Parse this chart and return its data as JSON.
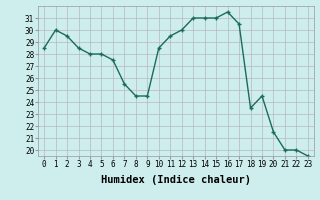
{
  "x": [
    0,
    1,
    2,
    3,
    4,
    5,
    6,
    7,
    8,
    9,
    10,
    11,
    12,
    13,
    14,
    15,
    16,
    17,
    18,
    19,
    20,
    21,
    22,
    23
  ],
  "y": [
    28.5,
    30.0,
    29.5,
    28.5,
    28.0,
    28.0,
    27.5,
    25.5,
    24.5,
    24.5,
    28.5,
    29.5,
    30.0,
    31.0,
    31.0,
    31.0,
    31.5,
    30.5,
    23.5,
    24.5,
    21.5,
    20.0,
    20.0,
    19.5
  ],
  "line_color": "#1a6b5a",
  "marker": "+",
  "marker_size": 3,
  "linewidth": 1.0,
  "xlabel": "Humidex (Indice chaleur)",
  "ylim": [
    19.5,
    32.0
  ],
  "xlim": [
    -0.5,
    23.5
  ],
  "yticks": [
    20,
    21,
    22,
    23,
    24,
    25,
    26,
    27,
    28,
    29,
    30,
    31
  ],
  "xticks": [
    0,
    1,
    2,
    3,
    4,
    5,
    6,
    7,
    8,
    9,
    10,
    11,
    12,
    13,
    14,
    15,
    16,
    17,
    18,
    19,
    20,
    21,
    22,
    23
  ],
  "bg_color": "#ceeeed",
  "grid_color": "#b8b8b8",
  "xlabel_fontsize": 7.5,
  "tick_fontsize": 5.5
}
